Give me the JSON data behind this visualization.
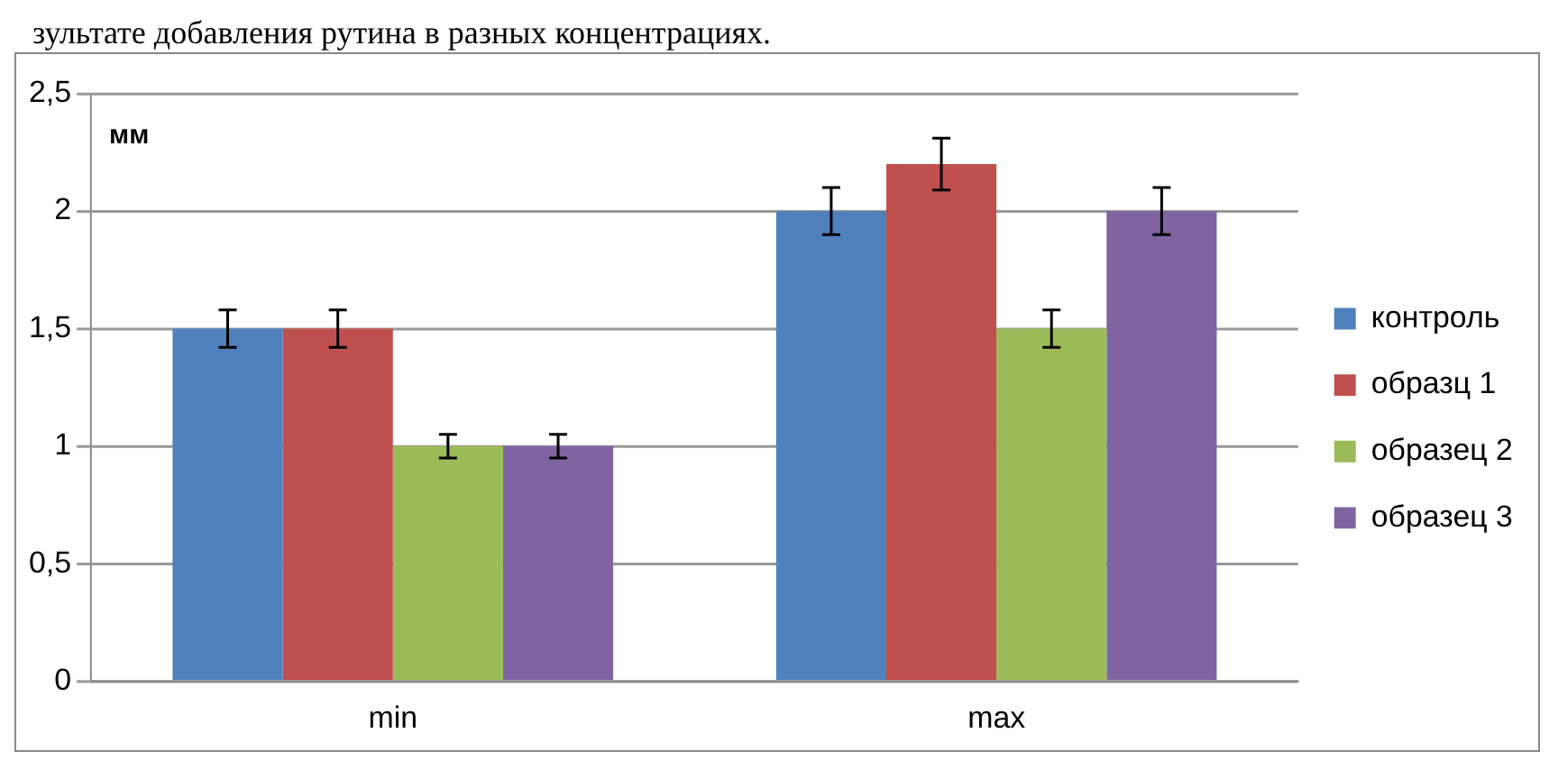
{
  "chart_data": {
    "type": "bar",
    "title": "зультате добавления рутина в разных концентрациях.",
    "ylabel": "мм",
    "categories": [
      "min",
      "max"
    ],
    "series": [
      {
        "name": "контроль",
        "color": "#4f81bd",
        "values": [
          1.5,
          2
        ],
        "errors": [
          0.08,
          0.1
        ]
      },
      {
        "name": "образц 1",
        "color": "#c0504d",
        "values": [
          1.5,
          2.2
        ],
        "errors": [
          0.08,
          0.11
        ]
      },
      {
        "name": "образец 2",
        "color": "#9bbb59",
        "values": [
          1,
          1.5
        ],
        "errors": [
          0.05,
          0.08
        ]
      },
      {
        "name": "образец 3",
        "color": "#8064a2",
        "values": [
          1,
          2
        ],
        "errors": [
          0.05,
          0.1
        ]
      }
    ],
    "ylim": [
      0,
      2.5
    ],
    "yticks": [
      0,
      {
        "value": 0.5,
        "label": "0,5"
      },
      1,
      {
        "value": 1.5,
        "label": "1,5"
      },
      2,
      {
        "value": 2.5,
        "label": "2,5"
      }
    ],
    "grid": "y",
    "legend": "right"
  }
}
